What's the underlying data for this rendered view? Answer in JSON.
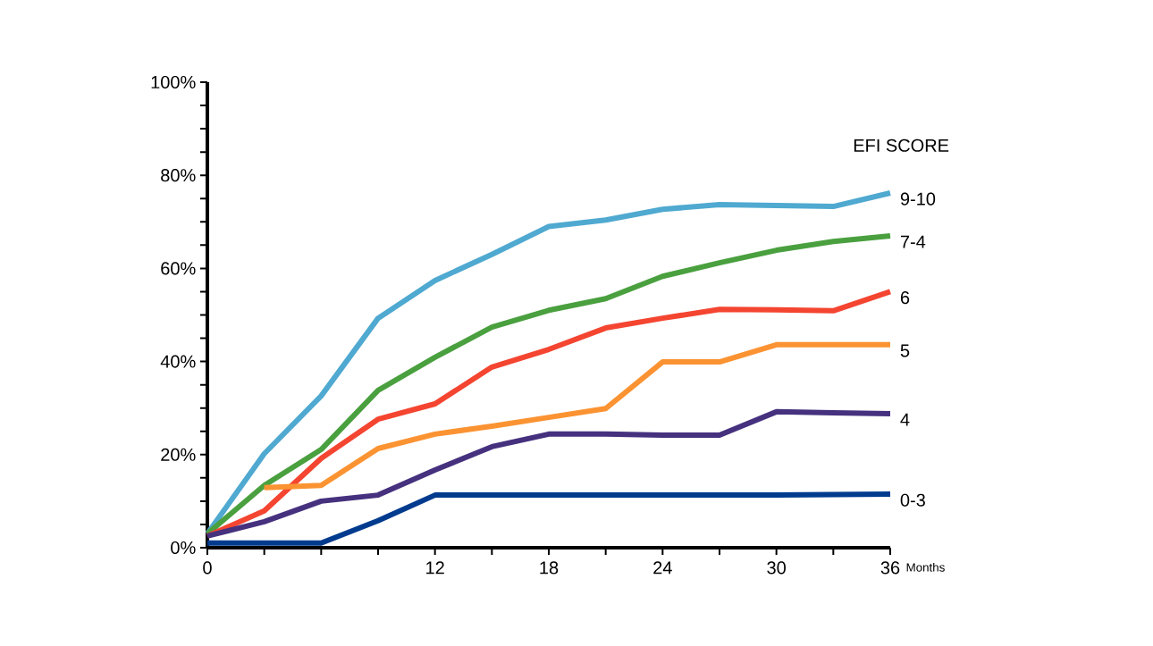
{
  "chart_data": {
    "type": "line",
    "xlabel": "Months",
    "legend_title": "EFI SCORE",
    "x": [
      0,
      3,
      6,
      9,
      12,
      15,
      18,
      21,
      24,
      27,
      30,
      33,
      36
    ],
    "series": [
      {
        "name": "9-10",
        "color": "#4fa9d0",
        "values": [
          3,
          20.2,
          32.6,
          49.3,
          57.4,
          63,
          69,
          70.4,
          72.7,
          73.7,
          73.5,
          73.3,
          76.2
        ]
      },
      {
        "name": "7-4",
        "color": "#4aa03f",
        "values": [
          3,
          13.4,
          21.1,
          33.8,
          40.9,
          47.4,
          51,
          53.5,
          58.3,
          61.2,
          63.9,
          65.8,
          67
        ]
      },
      {
        "name": "6",
        "color": "#f44531",
        "values": [
          2.5,
          7.9,
          19.2,
          27.6,
          30.9,
          38.8,
          42.6,
          47.2,
          49.3,
          51.2,
          51.1,
          50.9,
          55
        ]
      },
      {
        "name": "5",
        "color": "#fb9332",
        "values": [
          null,
          12.9,
          13.4,
          21.3,
          24.4,
          26.1,
          28,
          29.9,
          39.9,
          39.9,
          43.6,
          43.6,
          43.6
        ]
      },
      {
        "name": "4",
        "color": "#45317e",
        "values": [
          2.5,
          5.6,
          10,
          11.3,
          16.7,
          21.7,
          24.4,
          24.4,
          24.2,
          24.2,
          29.2,
          29,
          28.8
        ]
      },
      {
        "name": "0-3",
        "color": "#003b8e",
        "values": [
          1,
          1,
          1,
          5.8,
          11.3,
          11.3,
          11.3,
          11.3,
          11.3,
          11.3,
          11.3,
          11.4,
          11.5
        ]
      }
    ],
    "xlim": [
      0,
      36
    ],
    "ylim": [
      0,
      100
    ],
    "xticks": [
      0,
      {
        "value": 3,
        "label": null
      },
      {
        "value": 6,
        "label": null
      },
      {
        "value": 9,
        "label": null
      },
      12,
      {
        "value": 15,
        "label": null
      },
      18,
      {
        "value": 21,
        "label": null
      },
      24,
      {
        "value": 27,
        "label": null
      },
      30,
      {
        "value": 33,
        "label": null
      },
      36
    ],
    "yticks": [
      {
        "value": 0,
        "label": "0%"
      },
      {
        "value": 5,
        "label": null
      },
      {
        "value": 10,
        "label": null
      },
      {
        "value": 15,
        "label": null
      },
      {
        "value": 20,
        "label": "20%"
      },
      {
        "value": 25,
        "label": null
      },
      {
        "value": 30,
        "label": null
      },
      {
        "value": 35,
        "label": null
      },
      {
        "value": 40,
        "label": "40%"
      },
      {
        "value": 45,
        "label": null
      },
      {
        "value": 50,
        "label": null
      },
      {
        "value": 55,
        "label": null
      },
      {
        "value": 60,
        "label": "60%"
      },
      {
        "value": 65,
        "label": null
      },
      {
        "value": 70,
        "label": null
      },
      {
        "value": 75,
        "label": null
      },
      {
        "value": 80,
        "label": "80%"
      },
      {
        "value": 85,
        "label": null
      },
      {
        "value": 90,
        "label": null
      },
      {
        "value": 95,
        "label": null
      },
      {
        "value": 100,
        "label": "100%"
      }
    ]
  }
}
